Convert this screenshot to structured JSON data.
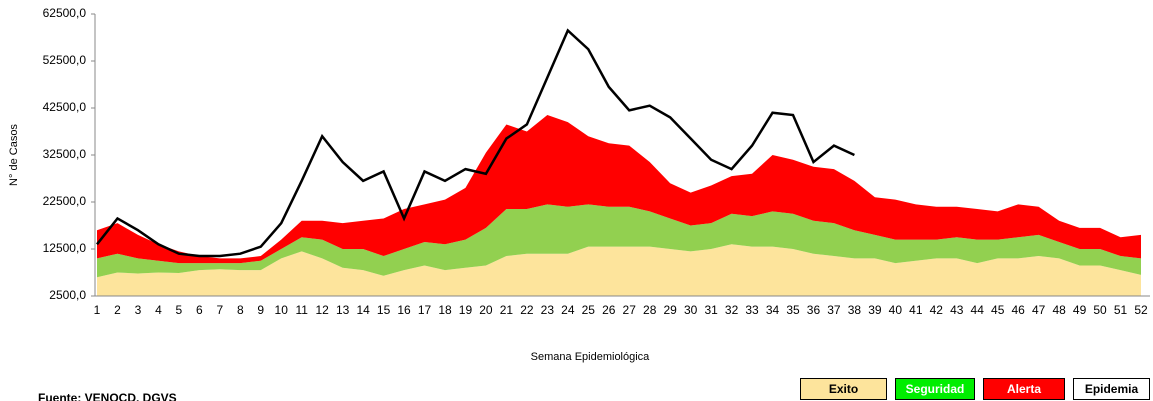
{
  "chart_data": {
    "type": "endemic-area",
    "ylabel": "N° de Casos",
    "xlabel": "Semana Epidemiológica",
    "source": "Fuente: VENOCD, DGVS",
    "x": [
      1,
      2,
      3,
      4,
      5,
      6,
      7,
      8,
      9,
      10,
      11,
      12,
      13,
      14,
      15,
      16,
      17,
      18,
      19,
      20,
      21,
      22,
      23,
      24,
      25,
      26,
      27,
      28,
      29,
      30,
      31,
      32,
      33,
      34,
      35,
      36,
      37,
      38,
      39,
      40,
      41,
      42,
      43,
      44,
      45,
      46,
      47,
      48,
      49,
      50,
      51,
      52
    ],
    "ylim": [
      2500,
      62500
    ],
    "yticks": [
      {
        "value": 2500,
        "label": "2500,0"
      },
      {
        "value": 12500,
        "label": "12500,0"
      },
      {
        "value": 22500,
        "label": "22500,0"
      },
      {
        "value": 32500,
        "label": "32500,0"
      },
      {
        "value": 42500,
        "label": "42500,0"
      },
      {
        "value": 52500,
        "label": "52500,0"
      },
      {
        "value": 62500,
        "label": "62500,0"
      }
    ],
    "series": [
      {
        "name": "Exito",
        "color": "#fde49c",
        "values": [
          6500,
          7500,
          7300,
          7500,
          7400,
          8000,
          8200,
          8000,
          8000,
          10500,
          12000,
          10500,
          8500,
          8000,
          6800,
          8000,
          9000,
          8000,
          8500,
          9000,
          11000,
          11500,
          11500,
          11500,
          13000,
          13000,
          13000,
          13000,
          12500,
          12000,
          12500,
          13500,
          13000,
          13000,
          12500,
          11500,
          11000,
          10500,
          10500,
          9500,
          10000,
          10500,
          10500,
          9500,
          10500,
          10500,
          11000,
          10500,
          9000,
          9000,
          8000,
          7000
        ]
      },
      {
        "name": "Seguridad",
        "color": "#92d050",
        "legend_color": "#00ee00",
        "values": [
          4000,
          4000,
          3200,
          2500,
          2100,
          1500,
          1300,
          1500,
          2000,
          2000,
          3000,
          4000,
          4000,
          4500,
          4200,
          4500,
          5000,
          5500,
          6000,
          8000,
          10000,
          9500,
          10500,
          10000,
          9000,
          8500,
          8500,
          7500,
          6500,
          5500,
          5500,
          6500,
          6500,
          7500,
          7500,
          7000,
          7000,
          6000,
          5000,
          5000,
          4500,
          4000,
          4500,
          5000,
          4000,
          4500,
          4500,
          3500,
          3500,
          3500,
          3000,
          3500
        ]
      },
      {
        "name": "Alerta",
        "color": "#ff0000",
        "values": [
          6000,
          6500,
          5000,
          3500,
          2500,
          1500,
          1000,
          1000,
          1000,
          2000,
          3500,
          4000,
          5500,
          6000,
          8000,
          8500,
          8000,
          9500,
          11000,
          16000,
          18000,
          16500,
          19000,
          18000,
          14500,
          13500,
          13000,
          10500,
          7500,
          7000,
          8000,
          8000,
          9000,
          12000,
          11500,
          11500,
          11500,
          10500,
          8000,
          8500,
          7500,
          7000,
          6500,
          6500,
          6000,
          7000,
          6000,
          4500,
          4500,
          4500,
          4000,
          5000
        ]
      },
      {
        "name": "Epidemia",
        "color": "#ffffff"
      }
    ],
    "line": {
      "color": "#000000",
      "values": [
        13500,
        19000,
        16500,
        13500,
        11500,
        11000,
        11000,
        11500,
        13000,
        18000,
        27000,
        36500,
        31000,
        27000,
        29000,
        19000,
        29000,
        27000,
        29500,
        28500,
        36000,
        39000,
        49000,
        59000,
        55000,
        47000,
        42000,
        43000,
        40500,
        36000,
        31500,
        29500,
        34500,
        41500,
        41000,
        31000,
        34500,
        32500,
        null,
        null,
        null,
        null,
        null,
        null,
        null,
        null,
        null,
        null,
        null,
        null,
        null,
        null
      ]
    }
  }
}
